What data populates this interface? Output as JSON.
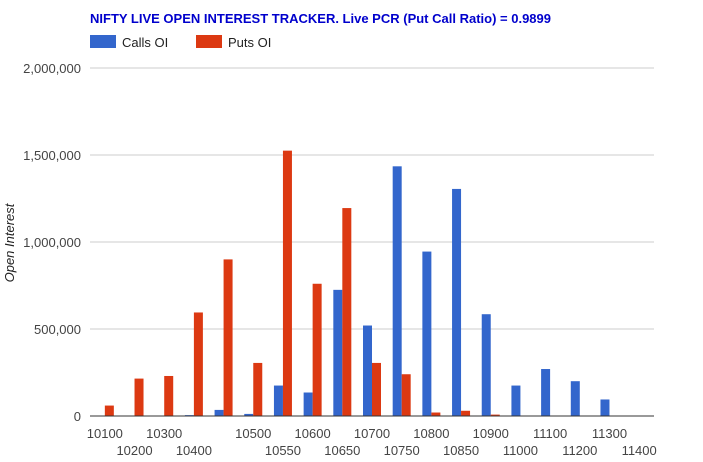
{
  "chart_data": {
    "type": "bar",
    "title": "NIFTY LIVE OPEN INTEREST TRACKER. Live PCR (Put Call Ratio) = 0.9899",
    "xlabel": "",
    "ylabel": "Open Interest",
    "ylim": [
      0,
      2000000
    ],
    "yticks": [
      0,
      500000,
      1000000,
      1500000,
      2000000
    ],
    "ytick_labels": [
      "0",
      "500,000",
      "1,000,000",
      "1,500,000",
      "2,000,000"
    ],
    "grid": true,
    "legend_position": "top-left",
    "categories": [
      "10100",
      "10200",
      "10300",
      "10400",
      "10450",
      "10500",
      "10550",
      "10600",
      "10650",
      "10700",
      "10750",
      "10800",
      "10850",
      "10900",
      "11000",
      "11100",
      "11200",
      "11300",
      "11400"
    ],
    "xtick_labels_row1": [
      "10100",
      "10300",
      "10500",
      "10600",
      "10700",
      "10800",
      "10900",
      "11100",
      "11300"
    ],
    "xtick_labels_row2": [
      "10200",
      "10400",
      "10550",
      "10650",
      "10750",
      "10850",
      "11000",
      "11200",
      "11400"
    ],
    "series": [
      {
        "name": "Calls OI",
        "color": "#3366cc",
        "values": [
          0,
          0,
          0,
          5000,
          35000,
          12000,
          175000,
          135000,
          725000,
          520000,
          1435000,
          945000,
          1305000,
          585000,
          175000,
          270000,
          200000,
          95000,
          0
        ]
      },
      {
        "name": "Puts OI",
        "color": "#dc3912",
        "values": [
          60000,
          215000,
          230000,
          595000,
          900000,
          305000,
          1525000,
          760000,
          1195000,
          305000,
          240000,
          20000,
          30000,
          8000,
          0,
          0,
          0,
          0,
          0
        ]
      }
    ]
  }
}
